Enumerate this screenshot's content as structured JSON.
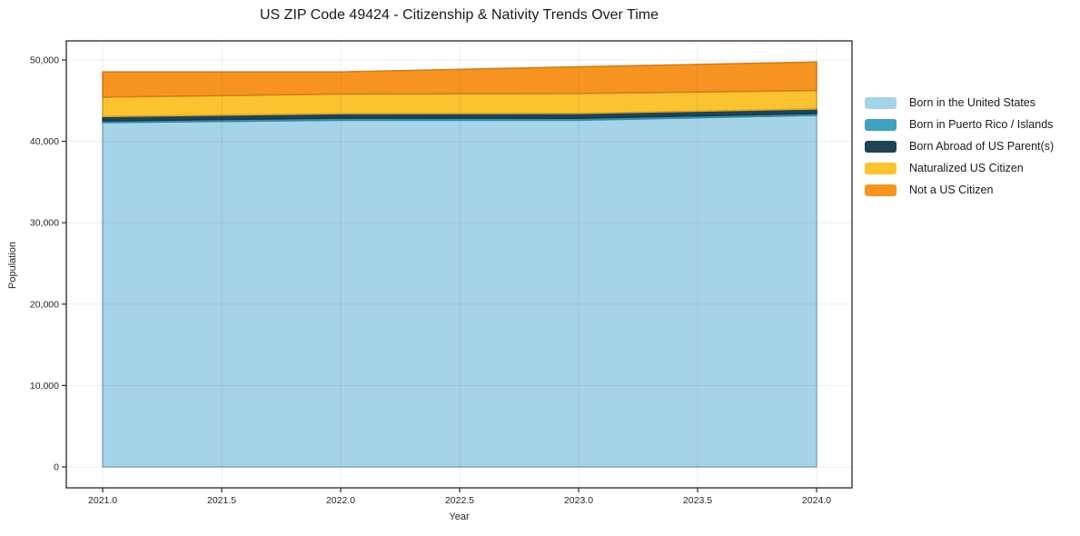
{
  "title": "US ZIP Code 49424 - Citizenship & Nativity Trends Over Time",
  "chart_data": {
    "type": "area",
    "stacked": true,
    "title": "US ZIP Code 49424 - Citizenship & Nativity Trends Over Time",
    "xlabel": "Year",
    "ylabel": "Population",
    "x": [
      2021,
      2022,
      2023,
      2024
    ],
    "series": [
      {
        "name": "Born in the United States",
        "color": "#a5d3e8",
        "values": [
          42300,
          42600,
          42600,
          43200
        ]
      },
      {
        "name": "Born in Puerto Rico / Islands",
        "color": "#3fa0c0",
        "values": [
          200,
          250,
          230,
          230
        ]
      },
      {
        "name": "Born Abroad of US Parent(s)",
        "color": "#1e4456",
        "values": [
          550,
          550,
          600,
          550
        ]
      },
      {
        "name": "Naturalized US Citizen",
        "color": "#fcc330",
        "values": [
          2380,
          2420,
          2450,
          2270
        ]
      },
      {
        "name": "Not a US Citizen",
        "color": "#f79421",
        "values": [
          3090,
          2710,
          3270,
          3500
        ]
      }
    ],
    "stack_totals": [
      48520,
      48530,
      49150,
      49750
    ],
    "xlim": [
      2020.847,
      2024.149
    ],
    "ylim": [
      -2570,
      52340
    ],
    "xticks": [
      2021.0,
      2021.5,
      2022.0,
      2022.5,
      2023.0,
      2023.5,
      2024.0
    ],
    "xtick_labels": [
      "2021.0",
      "2021.5",
      "2022.0",
      "2022.5",
      "2023.0",
      "2023.5",
      "2024.0"
    ],
    "yticks": [
      0,
      10000,
      20000,
      30000,
      40000,
      50000
    ],
    "ytick_labels": [
      "0",
      "10,000",
      "20,000",
      "30,000",
      "40,000",
      "50,000"
    ],
    "grid": true,
    "legend_position": "right"
  },
  "colors": {
    "spine": "#262626",
    "tick_text": "#262626",
    "grid_rgba": "rgba(0,0,0,0.07)"
  }
}
